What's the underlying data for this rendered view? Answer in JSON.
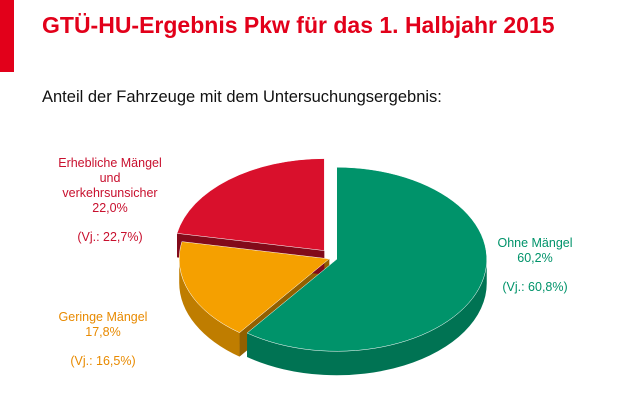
{
  "chart_data": {
    "type": "pie",
    "title": "GTÜ-HU-Ergebnis Pkw für das 1. Halbjahr 2015",
    "subtitle": "Anteil der Fahrzeuge mit dem Untersuchungsergebnis:",
    "categories": [
      "Ohne Mängel",
      "Geringe Mängel",
      "Erhebliche Mängel\nund\nverkehrsunsicher"
    ],
    "values": [
      60.2,
      17.8,
      22.0
    ],
    "value_labels": [
      "60,2%",
      "17,8%",
      "22,0%"
    ],
    "previous_labels": [
      "(Vj.: 60,8%)",
      "(Vj.: 16,5%)",
      "(Vj.: 22,7%)"
    ],
    "colors": [
      "#00936a",
      "#f5a000",
      "#d9102c"
    ]
  }
}
